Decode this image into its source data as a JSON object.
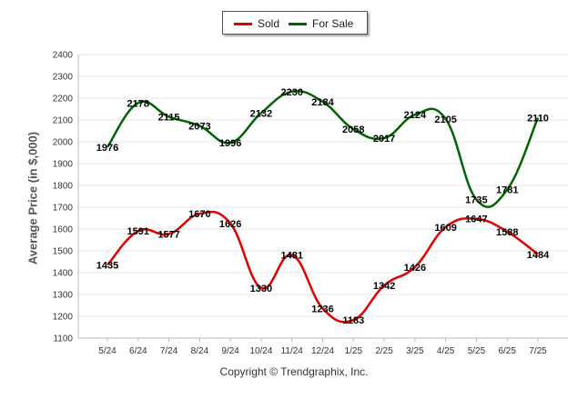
{
  "chart_data": {
    "type": "line",
    "categories": [
      "5/24",
      "6/24",
      "7/24",
      "8/24",
      "9/24",
      "10/24",
      "11/24",
      "12/24",
      "1/25",
      "2/25",
      "3/25",
      "4/25",
      "5/25",
      "6/25",
      "7/25"
    ],
    "series": [
      {
        "name": "Sold",
        "color": "#e00000",
        "values": [
          1435,
          1591,
          1577,
          1670,
          1626,
          1330,
          1481,
          1236,
          1183,
          1342,
          1426,
          1609,
          1647,
          1588,
          1484
        ]
      },
      {
        "name": "For Sale",
        "color": "#006400",
        "values": [
          1976,
          2178,
          2115,
          2073,
          1996,
          2132,
          2230,
          2184,
          2058,
          2017,
          2124,
          2105,
          1735,
          1781,
          2110
        ]
      }
    ],
    "ylabel": "Average Price (in $,000)",
    "xlabel": "",
    "ylim": [
      1100,
      2400
    ],
    "yticks": [
      1100,
      1200,
      1300,
      1400,
      1500,
      1600,
      1700,
      1800,
      1900,
      2000,
      2100,
      2200,
      2300,
      2400
    ],
    "grid": true,
    "legend_position": "top-center"
  },
  "footer": {
    "copyright": "Copyright © Trendgraphix, Inc."
  }
}
